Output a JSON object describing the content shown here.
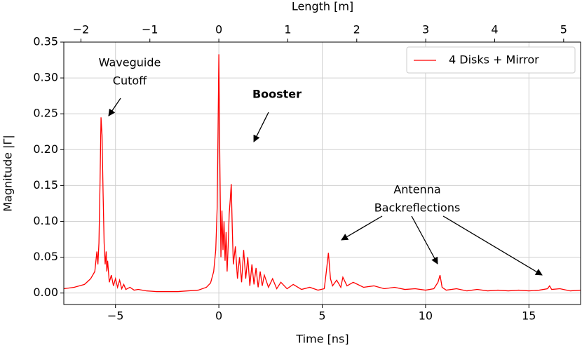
{
  "chart_data": {
    "type": "line",
    "x_label": "Time [ns]",
    "x2_label": "Length [m]",
    "y_label": "Magnitude |Γ|",
    "xlim": [
      -7.5,
      17.5
    ],
    "xticks": [
      {
        "value": -5,
        "label": "−5"
      },
      0,
      5,
      10,
      15
    ],
    "x2lim": [
      -2.248,
      5.246
    ],
    "x2ticks": [
      {
        "value": -2,
        "label": "−2"
      },
      {
        "value": -1,
        "label": "−1"
      },
      0,
      1,
      2,
      3,
      4,
      5
    ],
    "ylim": [
      -0.016,
      0.35
    ],
    "yticks": [
      {
        "value": 0,
        "label": "0.00"
      },
      {
        "value": 0.05,
        "label": "0.05"
      },
      {
        "value": 0.1,
        "label": "0.10"
      },
      {
        "value": 0.15,
        "label": "0.15"
      },
      {
        "value": 0.2,
        "label": "0.20"
      },
      {
        "value": 0.25,
        "label": "0.25"
      },
      {
        "value": 0.3,
        "label": "0.30"
      },
      {
        "value": 0.35,
        "label": "0.35"
      }
    ],
    "grid": true,
    "legend": "upper right",
    "x": [
      -7.5,
      -7,
      -6.5,
      -6.2,
      -6,
      -5.9,
      -5.85,
      -5.8,
      -5.75,
      -5.7,
      -5.65,
      -5.6,
      -5.55,
      -5.5,
      -5.45,
      -5.42,
      -5.38,
      -5.3,
      -5.2,
      -5.1,
      -5,
      -4.9,
      -4.8,
      -4.7,
      -4.6,
      -4.5,
      -4.3,
      -4.1,
      -3.9,
      -3.5,
      -3,
      -2,
      -1.5,
      -1,
      -0.6,
      -0.4,
      -0.25,
      -0.15,
      -0.08,
      -0.03,
      0,
      0.05,
      0.1,
      0.15,
      0.2,
      0.25,
      0.3,
      0.35,
      0.4,
      0.45,
      0.5,
      0.55,
      0.6,
      0.65,
      0.7,
      0.8,
      0.9,
      1.0,
      1.1,
      1.2,
      1.3,
      1.4,
      1.5,
      1.6,
      1.7,
      1.8,
      1.9,
      2.0,
      2.1,
      2.2,
      2.4,
      2.6,
      2.8,
      3.0,
      3.3,
      3.6,
      4.0,
      4.4,
      4.8,
      5.1,
      5.2,
      5.3,
      5.4,
      5.5,
      5.7,
      5.9,
      6.0,
      6.2,
      6.5,
      7,
      7.5,
      8,
      8.5,
      9,
      9.5,
      10,
      10.4,
      10.6,
      10.7,
      10.8,
      11,
      11.5,
      12,
      12.5,
      13,
      13.5,
      14,
      14.5,
      15,
      15.5,
      15.9,
      16.0,
      16.1,
      16.5,
      17,
      17.5
    ],
    "series": [
      {
        "name": "4 Disks + Mirror",
        "color": "#ff0000",
        "values": [
          0.006,
          0.008,
          0.012,
          0.02,
          0.03,
          0.058,
          0.04,
          0.07,
          0.15,
          0.245,
          0.22,
          0.14,
          0.07,
          0.04,
          0.058,
          0.03,
          0.045,
          0.015,
          0.025,
          0.01,
          0.02,
          0.008,
          0.018,
          0.006,
          0.012,
          0.005,
          0.008,
          0.004,
          0.005,
          0.003,
          0.002,
          0.002,
          0.003,
          0.004,
          0.008,
          0.014,
          0.03,
          0.06,
          0.12,
          0.25,
          0.333,
          0.18,
          0.05,
          0.115,
          0.06,
          0.1,
          0.045,
          0.085,
          0.03,
          0.065,
          0.11,
          0.13,
          0.152,
          0.09,
          0.04,
          0.065,
          0.02,
          0.05,
          0.015,
          0.06,
          0.02,
          0.05,
          0.01,
          0.04,
          0.012,
          0.035,
          0.008,
          0.03,
          0.01,
          0.025,
          0.008,
          0.02,
          0.006,
          0.015,
          0.006,
          0.012,
          0.005,
          0.008,
          0.004,
          0.006,
          0.03,
          0.056,
          0.02,
          0.01,
          0.018,
          0.008,
          0.022,
          0.01,
          0.015,
          0.008,
          0.01,
          0.006,
          0.008,
          0.005,
          0.006,
          0.004,
          0.006,
          0.015,
          0.025,
          0.008,
          0.004,
          0.006,
          0.003,
          0.005,
          0.003,
          0.004,
          0.003,
          0.004,
          0.003,
          0.004,
          0.006,
          0.01,
          0.005,
          0.006,
          0.003,
          0.004
        ]
      }
    ],
    "annotations": [
      {
        "lines": [
          "Waveguide",
          "Cutoff"
        ]
      },
      {
        "lines": [
          "Booster"
        ]
      },
      {
        "lines": [
          "Antenna",
          "Backreflections"
        ]
      }
    ]
  }
}
